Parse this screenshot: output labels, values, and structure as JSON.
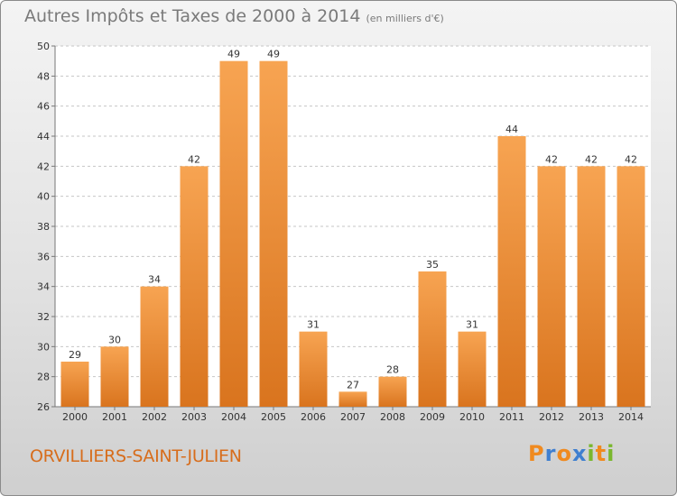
{
  "header": {
    "title": "Autres Impôts et Taxes de 2000 à 2014",
    "unit": "(en milliers d'€)"
  },
  "footer": {
    "commune": "ORVILLIERS-SAINT-JULIEN",
    "logo": {
      "letters": [
        "P",
        "r",
        "o",
        "x",
        "i",
        "t",
        "i"
      ],
      "colors": [
        "#f08a1f",
        "#3f7fd0",
        "#f08a1f",
        "#3f7fd0",
        "#7ab72e",
        "#f08a1f",
        "#7ab72e"
      ]
    }
  },
  "colors": {
    "bar_light": "#f7a452",
    "bar_dark": "#d9741e",
    "grid": "#c6c6c6"
  },
  "chart_data": {
    "type": "bar",
    "title": "Autres Impôts et Taxes de 2000 à 2014",
    "subtitle": "(en milliers d'€)",
    "categories": [
      "2000",
      "2001",
      "2002",
      "2003",
      "2004",
      "2005",
      "2006",
      "2007",
      "2008",
      "2009",
      "2010",
      "2011",
      "2012",
      "2013",
      "2014"
    ],
    "values": [
      29,
      30,
      34,
      42,
      49,
      49,
      31,
      27,
      28,
      35,
      31,
      44,
      42,
      42,
      42
    ],
    "ylim": [
      26,
      50
    ],
    "yticks": [
      26,
      28,
      30,
      32,
      34,
      36,
      38,
      40,
      42,
      44,
      46,
      48,
      50
    ],
    "grid": true,
    "xlabel": "",
    "ylabel": ""
  }
}
